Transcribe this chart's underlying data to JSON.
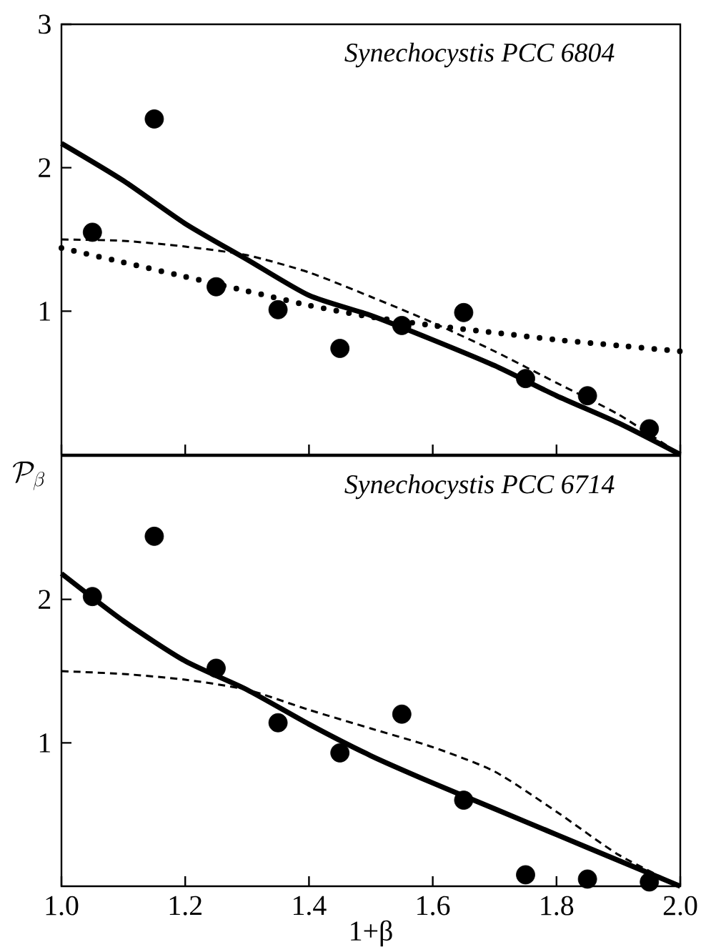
{
  "chart_data": [
    {
      "type": "scatter",
      "title": "Synechocystis PCC 6804",
      "xlim": [
        1.0,
        2.0
      ],
      "ylim": [
        0,
        3
      ],
      "yticks": [
        1,
        2,
        3
      ],
      "xticks": [
        1.0,
        1.2,
        1.4,
        1.6,
        1.8,
        2.0
      ],
      "tick_labels": "y",
      "grid": false,
      "series": [
        {
          "marker": "circle",
          "color": "#000000",
          "x": [
            1.05,
            1.15,
            1.25,
            1.35,
            1.45,
            1.55,
            1.65,
            1.75,
            1.85,
            1.95
          ],
          "values": [
            1.55,
            2.34,
            1.17,
            1.01,
            0.74,
            0.9,
            0.99,
            0.53,
            0.41,
            0.18
          ]
        },
        {
          "type": "line",
          "line_style": "solid",
          "marker": "none",
          "color": "#000000",
          "x": [
            1.0,
            1.1,
            1.2,
            1.3,
            1.4,
            1.5,
            1.6,
            1.7,
            1.8,
            1.9,
            2.0
          ],
          "values": [
            2.17,
            1.91,
            1.61,
            1.36,
            1.11,
            0.97,
            0.8,
            0.62,
            0.41,
            0.22,
            0.0
          ]
        },
        {
          "type": "line",
          "line_style": "dashed",
          "marker": "none",
          "color": "#000000",
          "x": [
            1.0,
            1.1,
            1.2,
            1.3,
            1.4,
            1.5,
            1.6,
            1.7,
            1.8,
            1.9,
            2.0
          ],
          "values": [
            1.5,
            1.49,
            1.45,
            1.39,
            1.27,
            1.1,
            0.92,
            0.72,
            0.5,
            0.28,
            0.0
          ]
        },
        {
          "type": "line",
          "line_style": "dotted",
          "marker": "none",
          "color": "#000000",
          "x": [
            1.0,
            1.1,
            1.2,
            1.3,
            1.4,
            1.5,
            1.6,
            1.7,
            1.8,
            1.9,
            2.0
          ],
          "values": [
            1.44,
            1.34,
            1.24,
            1.14,
            1.04,
            0.96,
            0.9,
            0.85,
            0.8,
            0.76,
            0.72
          ]
        }
      ]
    },
    {
      "type": "scatter",
      "title": "Synechocystis PCC 6714",
      "xlabel": "1+β",
      "ylabel": "\\mathcal{P}_{\\beta}",
      "xlim": [
        1.0,
        2.0
      ],
      "ylim": [
        0,
        3
      ],
      "yticks": [
        1,
        2
      ],
      "xticks": [
        {
          "value": 1.0,
          "label": "1.0"
        },
        {
          "value": 1.2,
          "label": "1.2"
        },
        {
          "value": 1.4,
          "label": "1.4"
        },
        {
          "value": 1.6,
          "label": "1.6"
        },
        {
          "value": 1.8,
          "label": "1.8"
        },
        {
          "value": 2.0,
          "label": "2.0"
        }
      ],
      "grid": false,
      "series": [
        {
          "marker": "circle",
          "color": "#000000",
          "x": [
            1.05,
            1.15,
            1.25,
            1.35,
            1.45,
            1.55,
            1.65,
            1.75,
            1.85,
            1.95
          ],
          "values": [
            2.02,
            2.44,
            1.52,
            1.14,
            0.93,
            1.2,
            0.6,
            0.08,
            0.05,
            0.03
          ]
        },
        {
          "type": "line",
          "line_style": "solid",
          "marker": "none",
          "color": "#000000",
          "x": [
            1.0,
            1.1,
            1.2,
            1.3,
            1.4,
            1.5,
            1.6,
            1.7,
            1.8,
            1.9,
            2.0
          ],
          "values": [
            2.18,
            1.85,
            1.57,
            1.37,
            1.13,
            0.91,
            0.72,
            0.54,
            0.36,
            0.18,
            0.0
          ]
        },
        {
          "type": "line",
          "line_style": "dashed",
          "marker": "none",
          "color": "#000000",
          "x": [
            1.0,
            1.1,
            1.2,
            1.3,
            1.4,
            1.5,
            1.6,
            1.7,
            1.8,
            1.9,
            2.0
          ],
          "values": [
            1.5,
            1.48,
            1.44,
            1.37,
            1.23,
            1.1,
            0.97,
            0.8,
            0.52,
            0.22,
            0.0
          ]
        }
      ]
    }
  ]
}
